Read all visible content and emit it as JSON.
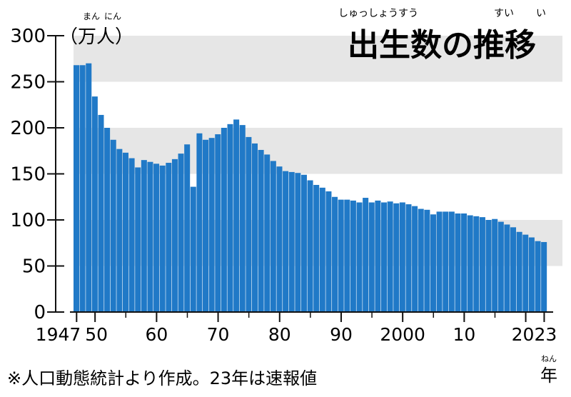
{
  "chart_data": {
    "type": "bar",
    "title": "出生数の推移",
    "title_ruby": [
      {
        "base": "出生数",
        "ruby": "しゅっしょうすう"
      },
      {
        "base": "推",
        "ruby": "すい"
      },
      {
        "base": "移",
        "ruby": "い"
      }
    ],
    "ylabel": "（万人）",
    "ylabel_ruby": [
      {
        "base": "万",
        "ruby": "まん"
      },
      {
        "base": "人",
        "ruby": "にん"
      }
    ],
    "xunit": "年",
    "xunit_ruby": "ねん",
    "ylim": [
      0,
      300
    ],
    "yticks": [
      0,
      50,
      100,
      150,
      200,
      250,
      300
    ],
    "xtick_labels": [
      {
        "year": 1947,
        "label": "1947"
      },
      {
        "year": 1950,
        "label": "50"
      },
      {
        "year": 1960,
        "label": "60"
      },
      {
        "year": 1970,
        "label": "70"
      },
      {
        "year": 1980,
        "label": "80"
      },
      {
        "year": 1990,
        "label": "90"
      },
      {
        "year": 2000,
        "label": "2000"
      },
      {
        "year": 2010,
        "label": "10"
      },
      {
        "year": 2020,
        "label": "20"
      },
      {
        "year": 2023,
        "label": "23"
      }
    ],
    "bar_color": "#2079c7",
    "band_color": "#e6e6e6",
    "years": [
      1947,
      1948,
      1949,
      1950,
      1951,
      1952,
      1953,
      1954,
      1955,
      1956,
      1957,
      1958,
      1959,
      1960,
      1961,
      1962,
      1963,
      1964,
      1965,
      1966,
      1967,
      1968,
      1969,
      1970,
      1971,
      1972,
      1973,
      1974,
      1975,
      1976,
      1977,
      1978,
      1979,
      1980,
      1981,
      1982,
      1983,
      1984,
      1985,
      1986,
      1987,
      1988,
      1989,
      1990,
      1991,
      1992,
      1993,
      1994,
      1995,
      1996,
      1997,
      1998,
      1999,
      2000,
      2001,
      2002,
      2003,
      2004,
      2005,
      2006,
      2007,
      2008,
      2009,
      2010,
      2011,
      2012,
      2013,
      2014,
      2015,
      2016,
      2017,
      2018,
      2019,
      2020,
      2021,
      2022,
      2023
    ],
    "values": [
      268,
      268,
      270,
      234,
      214,
      200,
      187,
      177,
      173,
      167,
      157,
      165,
      163,
      161,
      159,
      162,
      166,
      172,
      182,
      136,
      194,
      187,
      189,
      193,
      200,
      204,
      209,
      203,
      190,
      183,
      176,
      171,
      164,
      158,
      153,
      152,
      151,
      149,
      143,
      138,
      135,
      131,
      125,
      122,
      122,
      121,
      119,
      124,
      119,
      121,
      119,
      120,
      118,
      119,
      117,
      115,
      112,
      111,
      106,
      109,
      109,
      109,
      107,
      107,
      105,
      104,
      103,
      100,
      101,
      98,
      95,
      92,
      87,
      84,
      81,
      77,
      76
    ]
  },
  "note": "※人口動態統計より作成。23年は速報値"
}
